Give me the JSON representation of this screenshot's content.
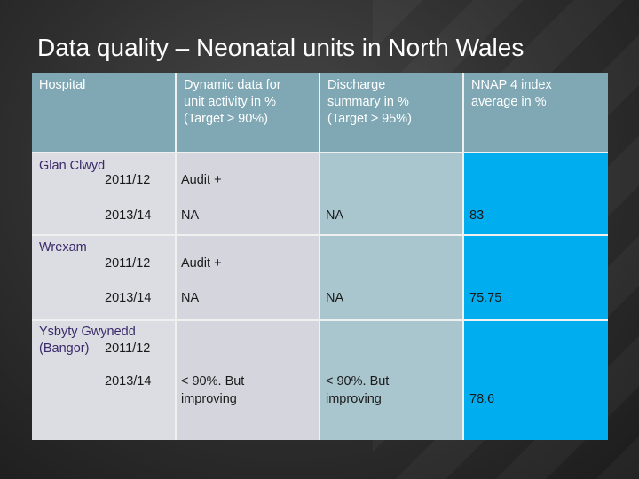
{
  "title": "Data quality – Neonatal units in North Wales",
  "headers": {
    "hospital": "Hospital",
    "dynamic": [
      "Dynamic data for",
      "unit activity in %",
      "(Target ≥ 90%)"
    ],
    "discharge": [
      "Discharge",
      "summary in %",
      "(Target ≥ 95%)"
    ],
    "nnap": [
      "NNAP  4 index",
      "average  in %"
    ]
  },
  "rows": {
    "glan": {
      "name": "Glan Clwyd",
      "y1": "2011/12",
      "dyn1": "Audit +",
      "y2": "2013/14",
      "dyn2": "NA",
      "dis2": "NA",
      "nnap2": "83"
    },
    "wrexam": {
      "name": "Wrexam",
      "y1": "2011/12",
      "dyn1": "Audit  +",
      "y2": "2013/14",
      "dyn2": "NA",
      "dis2": "NA",
      "nnap2": "75.75"
    },
    "ysbyty": {
      "name": "Ysbyty Gwynedd",
      "name2": "(Bangor)",
      "y1": "2011/12",
      "y2": "2013/14",
      "dyn2": [
        "< 90%. But",
        "improving"
      ],
      "dis2": [
        "< 90%. But",
        "improving"
      ],
      "nnap2": "78.6"
    }
  },
  "colors": {
    "header": "#7fa7b4",
    "hospital_col": "#dcdce3",
    "dynamic_col": "#d5d5dd",
    "discharge_col": "#a9c5ce",
    "nnap_col": "#00adef"
  }
}
